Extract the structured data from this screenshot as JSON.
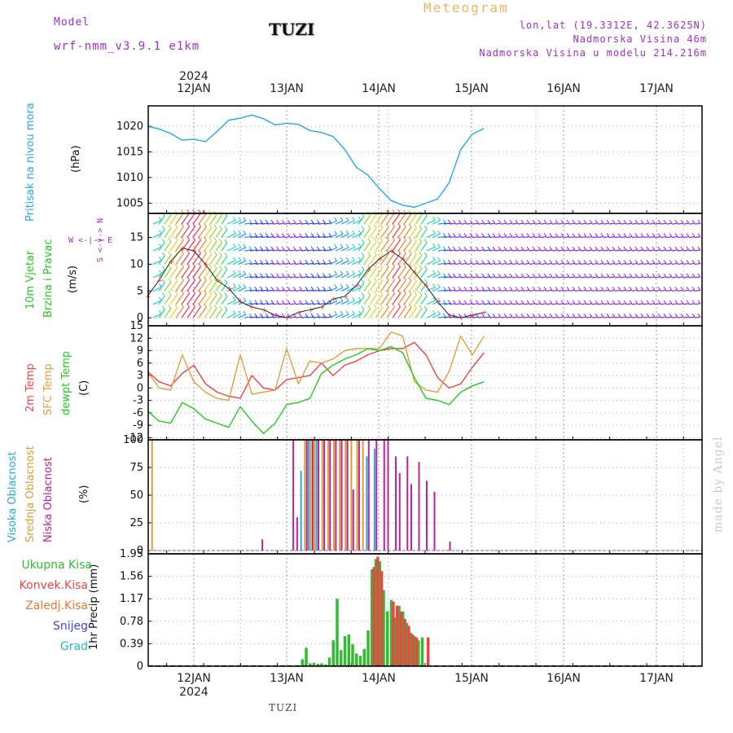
{
  "header": {
    "meteogram": "Meteogram",
    "model_label": "Model",
    "model_name": "wrf-nmm_v3.9.1 e1km",
    "station": "TUZI",
    "lonlat": "lon,lat (19.3312E, 42.3625N)",
    "altitude": "Nadmorska Visina 46m",
    "model_altitude": "Nadmorska Visina u modelu 214.216m"
  },
  "footer": {
    "station": "TUZI",
    "made_by": "made by Angel"
  },
  "colors": {
    "pressure": "#22aaee",
    "temp2m": "#ee4444",
    "sfc": "#e0a040",
    "dew": "#22cc22",
    "high": "#22aadd",
    "mid": "#d8a030",
    "low": "#c0209a",
    "total": "#33bb33",
    "conv": "#ee4444",
    "freezing": "#ee7733",
    "snow": "#4444dd",
    "graupel": "#22bbbb",
    "wind_label": "#22cc22",
    "purple": "#a030c8"
  },
  "chart_data": [
    {
      "type": "line",
      "name": "pressure",
      "ylabel": [
        "Pritisak na nivou mora",
        "(hPa)"
      ],
      "yticks": [
        1005,
        1010,
        1015,
        1020
      ],
      "ylim": [
        1003,
        1024
      ],
      "x_dates": [
        "2024-01-12",
        "2024-01-13",
        "2024-01-14",
        "2024-01-15",
        "2024-01-16",
        "2024-01-17"
      ],
      "x_tick_labels": [
        "12JAN",
        "13JAN",
        "14JAN",
        "15JAN",
        "16JAN",
        "17JAN"
      ],
      "year_label": "2024",
      "xlim_hours": [
        -15,
        75
      ],
      "series": [
        {
          "color_key": "pressure",
          "x_hours": [
            -15,
            -12,
            -9,
            -6,
            -3,
            0,
            3,
            6,
            9,
            12,
            15,
            18,
            21,
            24,
            27,
            30,
            33,
            36,
            39,
            42,
            45,
            48,
            51,
            54,
            57,
            60,
            63,
            66,
            69,
            72,
            75
          ],
          "values": [
            1021.3,
            1020.0,
            1019.5,
            1018.6,
            1017.3,
            1017.5,
            1017.0,
            1019.0,
            1021.2,
            1021.6,
            1022.2,
            1021.5,
            1020.3,
            1020.6,
            1020.4,
            1019.2,
            1018.8,
            1018.0,
            1015.5,
            1012.0,
            1010.5,
            1007.8,
            1005.5,
            1004.6,
            1004.2,
            1005.0,
            1005.8,
            1009.0,
            1015.5,
            1018.5,
            1019.6
          ]
        }
      ]
    },
    {
      "type": "line",
      "name": "wind",
      "ylabel": [
        "10m Vjetar",
        "Brzina i Pravac",
        "(m/s)"
      ],
      "compass": "W <-|-> E",
      "compass_vertical": "S <-|-> N",
      "yticks": [
        0,
        5,
        10,
        15
      ],
      "ylim": [
        -1.5,
        19.5
      ],
      "series": [
        {
          "x_hours": [
            -15,
            -12,
            -9,
            -6,
            -3,
            0,
            3,
            6,
            9,
            12,
            15,
            18,
            21,
            24,
            27,
            30,
            33,
            36,
            39,
            42,
            45,
            48,
            51,
            54,
            57,
            60,
            63,
            66,
            69,
            72,
            75
          ],
          "values": [
            2.5,
            4.0,
            7.0,
            10.5,
            13.0,
            12.5,
            10.0,
            7.0,
            5.5,
            3.0,
            2.0,
            1.5,
            0.5,
            0.0,
            1.0,
            1.5,
            2.0,
            3.5,
            4.0,
            6.0,
            9.0,
            11.0,
            12.5,
            11.0,
            8.5,
            6.0,
            3.0,
            0.5,
            0.0,
            0.5,
            1.0
          ]
        }
      ],
      "wind_barb_levels": [
        0,
        2.5,
        5,
        7.5,
        10,
        12.5,
        15,
        17.5
      ]
    },
    {
      "type": "line",
      "name": "temperature",
      "ylabel": [
        "2m Temp",
        "SFC Temp",
        "dewpt Temp",
        "(C)"
      ],
      "yticks": [
        -12,
        -9,
        -6,
        -3,
        0,
        3,
        6,
        9,
        12,
        15
      ],
      "ylim": [
        -12.5,
        15
      ],
      "series": [
        {
          "name": "2m Temp",
          "color_key": "temp2m",
          "x_hours": [
            -15,
            -12,
            -9,
            -6,
            -3,
            0,
            3,
            6,
            9,
            12,
            15,
            18,
            21,
            24,
            27,
            30,
            33,
            36,
            39,
            42,
            45,
            48,
            51,
            54,
            57,
            60,
            63,
            66,
            69,
            72,
            75
          ],
          "values": [
            7.0,
            4.0,
            1.5,
            0.5,
            3.5,
            5.5,
            1.0,
            -1.0,
            -2.0,
            -2.5,
            3.0,
            0.0,
            -0.5,
            2.0,
            2.5,
            3.0,
            6.0,
            3.0,
            5.5,
            6.5,
            8.0,
            9.0,
            9.5,
            9.5,
            11.0,
            8.0,
            2.5,
            0.0,
            1.0,
            5.0,
            8.5
          ]
        },
        {
          "name": "SFC Temp",
          "color_key": "sfc",
          "x_hours": [
            -15,
            -12,
            -9,
            -6,
            -3,
            0,
            3,
            6,
            9,
            12,
            15,
            18,
            21,
            24,
            27,
            30,
            33,
            36,
            39,
            42,
            45,
            48,
            51,
            54,
            57,
            60,
            63,
            66,
            69,
            72,
            75
          ],
          "values": [
            9.0,
            4.0,
            0.0,
            -0.5,
            8.0,
            1.5,
            -1.0,
            -2.5,
            -3.0,
            8.0,
            -1.5,
            -1.0,
            -0.5,
            9.5,
            1.0,
            6.5,
            6.0,
            7.0,
            9.0,
            9.5,
            9.5,
            9.5,
            13.5,
            12.5,
            1.5,
            -0.5,
            -1.0,
            4.0,
            12.5,
            8.0,
            12.5
          ]
        },
        {
          "name": "dewpt Temp",
          "color_key": "dew",
          "x_hours": [
            -15,
            -12,
            -9,
            -6,
            -3,
            0,
            3,
            6,
            9,
            12,
            15,
            18,
            21,
            24,
            27,
            30,
            33,
            36,
            39,
            42,
            45,
            48,
            51,
            54,
            57,
            60,
            63,
            66,
            69,
            72,
            75
          ],
          "values": [
            1.0,
            -5.5,
            -8.0,
            -8.5,
            -3.5,
            -5.0,
            -7.5,
            -8.5,
            -9.5,
            -4.5,
            -8.0,
            -11.0,
            -8.5,
            -4.0,
            -3.5,
            -2.5,
            3.5,
            5.5,
            7.0,
            8.0,
            9.5,
            9.0,
            10.0,
            8.5,
            2.5,
            -2.5,
            -3.0,
            -4.0,
            -1.0,
            0.5,
            1.5
          ]
        }
      ]
    },
    {
      "type": "bar",
      "name": "cloud",
      "ylabel": [
        "Visoka Oblacnost",
        "Srednja Oblacnost",
        "Niska Oblacnost",
        "(%)"
      ],
      "yticks": [
        0,
        25,
        50,
        75,
        100
      ],
      "ylim": [
        -3,
        100
      ],
      "series": [
        {
          "name": "Visoka Oblacnost",
          "color_key": "high",
          "x_hours": [
            27.5,
            29.5,
            31.5,
            44.5,
            46.5
          ],
          "values": [
            72,
            100,
            100,
            85,
            92
          ]
        },
        {
          "name": "Srednja Oblacnost",
          "color_key": "mid",
          "x_hours": [
            -11,
            28.5,
            30,
            31,
            33,
            34.5,
            36,
            37.5,
            39,
            40.5,
            42,
            43.5
          ],
          "values": [
            100,
            100,
            100,
            100,
            100,
            100,
            100,
            100,
            100,
            100,
            100,
            100
          ]
        },
        {
          "name": "Niska Oblacnost",
          "color_key": "low",
          "x_hours": [
            17.5,
            25.5,
            26.5,
            29,
            30.5,
            32,
            33.5,
            35,
            36.5,
            38,
            39.5,
            41,
            42.5,
            45,
            47,
            49,
            50,
            52,
            53,
            55,
            56,
            58,
            60,
            62,
            66
          ],
          "values": [
            10,
            100,
            30,
            100,
            100,
            100,
            100,
            100,
            100,
            100,
            100,
            55,
            100,
            100,
            100,
            100,
            100,
            85,
            70,
            85,
            60,
            80,
            63,
            53,
            8
          ]
        }
      ]
    },
    {
      "type": "bar",
      "name": "precip",
      "ylabel": [
        "1hr Precip (mm)"
      ],
      "yticks": [
        0,
        0.39,
        0.78,
        1.17,
        1.56,
        1.95
      ],
      "ylim": [
        0,
        1.95
      ],
      "legend": [
        "Ukupna Kisa",
        "Konvek.Kisa",
        "Zaledj.Kisa",
        "Snijeg",
        "Grad"
      ],
      "series": [
        {
          "name": "Ukupna Kisa",
          "color_key": "total",
          "x_hours": [
            28,
            29,
            30,
            31,
            32,
            33,
            34,
            35,
            36,
            37,
            38,
            39,
            40,
            41,
            42,
            43,
            44,
            45,
            46,
            47,
            48,
            49,
            50,
            51,
            52,
            53,
            54,
            55,
            56,
            57,
            58,
            59
          ],
          "values": [
            0.12,
            0.32,
            0.05,
            0.06,
            0.04,
            0.05,
            0.03,
            0.15,
            0.45,
            1.17,
            0.28,
            0.52,
            0.55,
            0.38,
            0.22,
            0.18,
            0.3,
            0.62,
            1.68,
            1.86,
            1.82,
            1.32,
            0.95,
            1.15,
            0.85,
            1.05,
            0.95,
            0.75,
            0.58,
            0.52,
            0.45,
            0.5
          ]
        },
        {
          "name": "Konvek.Kisa",
          "color_key": "conv",
          "x_hours": [
            46.5,
            47.5,
            48.5,
            51.5,
            52.5,
            53.5,
            54.5,
            55.5,
            56.5,
            57.5,
            60.5
          ],
          "values": [
            1.72,
            1.9,
            1.65,
            1.12,
            1.05,
            0.95,
            0.82,
            0.7,
            0.55,
            0.5,
            0.5
          ]
        }
      ]
    }
  ]
}
